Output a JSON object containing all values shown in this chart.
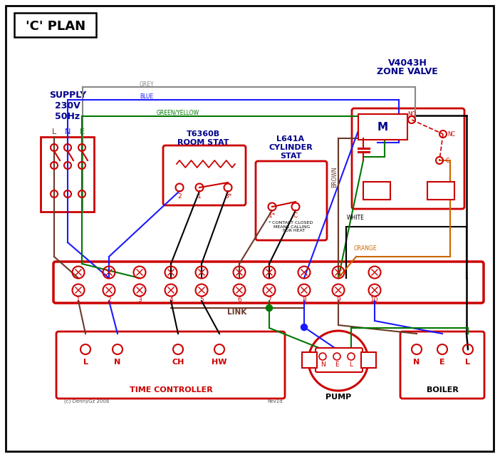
{
  "bg_color": "#ffffff",
  "border_color": "#000000",
  "red": "#cc0000",
  "blue": "#1a1aff",
  "green": "#007700",
  "grey": "#888888",
  "brown": "#6b3a2a",
  "orange": "#cc6600",
  "black": "#000000",
  "dark_blue": "#00008b",
  "title": "'C' PLAN",
  "zone_valve_label1": "V4043H",
  "zone_valve_label2": "ZONE VALVE",
  "supply_label": "SUPPLY\n230V\n50Hz",
  "room_stat_label1": "T6360B",
  "room_stat_label2": "ROOM STAT",
  "cyl_stat_label1": "L641A",
  "cyl_stat_label2": "CYLINDER",
  "cyl_stat_label3": "STAT",
  "time_controller_label": "TIME CONTROLLER",
  "pump_label": "PUMP",
  "boiler_label": "BOILER",
  "link_label": "LINK",
  "copyright": "(c) DennyGz 2008",
  "revision": "Rev1d"
}
